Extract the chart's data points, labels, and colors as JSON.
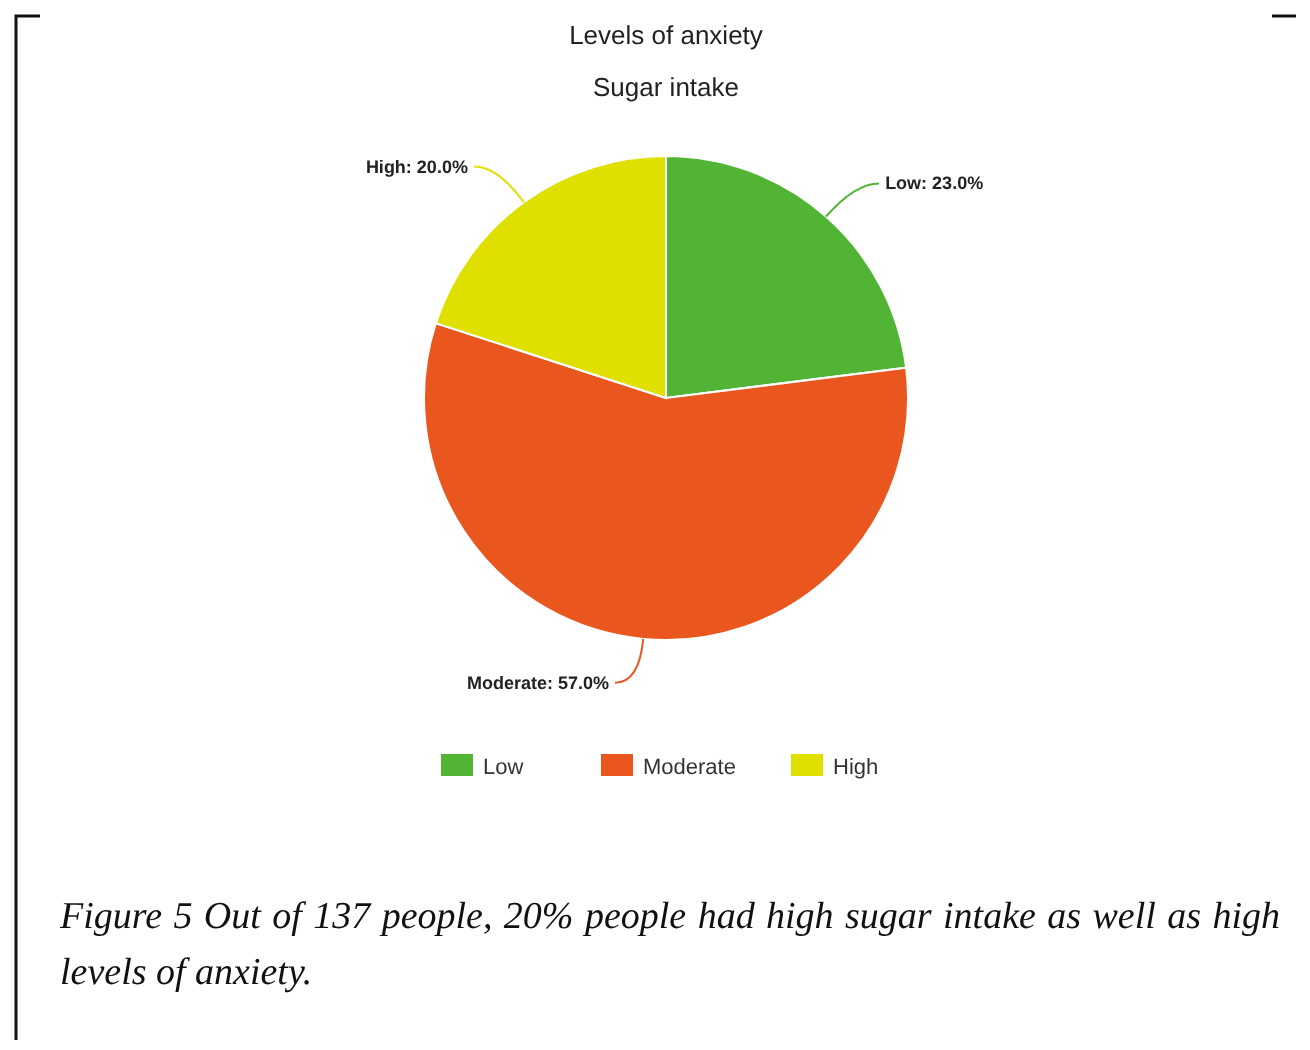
{
  "chart_data": {
    "type": "pie",
    "title": "Levels of anxiety",
    "subtitle": "Sugar intake",
    "categories": [
      "Low",
      "Moderate",
      "High"
    ],
    "values": [
      23,
      57,
      20
    ],
    "value_labels": [
      "Low: 23.0%",
      "Moderate: 57.0%",
      "High: 20.0%"
    ],
    "colors": [
      "#52b435",
      "#e9561e",
      "#dfe000"
    ],
    "legend": "bottom",
    "annotations": [
      "Figure 5 Out of 137 people, 20% people had high sugar intake as well as high levels of anxiety."
    ]
  }
}
